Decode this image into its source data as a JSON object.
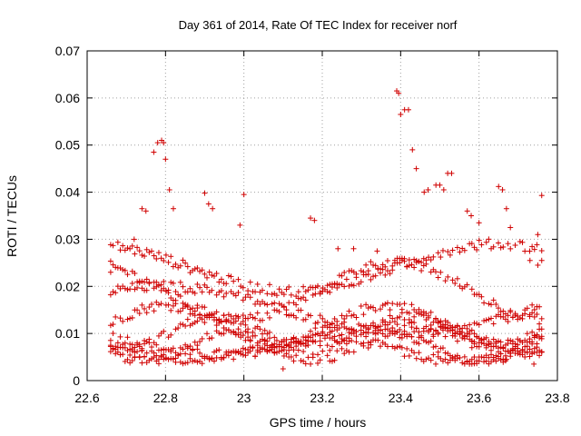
{
  "chart_data": {
    "type": "scatter",
    "title": "Day 361 of 2014, Rate Of TEC Index for receiver norf",
    "xlabel": "GPS time / hours",
    "ylabel": "ROTI / TECUs",
    "xlim": [
      22.6,
      23.8
    ],
    "ylim": [
      0,
      0.07
    ],
    "xticks": [
      22.6,
      22.8,
      23.0,
      23.2,
      23.4,
      23.6,
      23.8
    ],
    "xtick_labels": [
      "22.6",
      "22.8",
      "23",
      "23.2",
      "23.4",
      "23.6",
      "23.8"
    ],
    "yticks": [
      0,
      0.01,
      0.02,
      0.03,
      0.04,
      0.05,
      0.06,
      0.07
    ],
    "ytick_labels": [
      "0",
      "0.01",
      "0.02",
      "0.03",
      "0.04",
      "0.05",
      "0.06",
      "0.07"
    ],
    "grid": true,
    "marker": "+",
    "color": "#d00000",
    "series": [
      {
        "name": "ROTI",
        "x_range": [
          22.66,
          23.76
        ],
        "points": [
          [
            22.66,
            0.023
          ],
          [
            22.72,
            0.03
          ],
          [
            22.74,
            0.0365
          ],
          [
            22.75,
            0.036
          ],
          [
            22.77,
            0.0485
          ],
          [
            22.78,
            0.0505
          ],
          [
            22.79,
            0.051
          ],
          [
            22.795,
            0.0505
          ],
          [
            22.8,
            0.047
          ],
          [
            22.81,
            0.0405
          ],
          [
            22.82,
            0.0365
          ],
          [
            22.9,
            0.0398
          ],
          [
            22.91,
            0.0375
          ],
          [
            22.92,
            0.0365
          ],
          [
            22.99,
            0.033
          ],
          [
            23.0,
            0.0395
          ],
          [
            23.1,
            0.0025
          ],
          [
            23.17,
            0.0345
          ],
          [
            23.18,
            0.034
          ],
          [
            23.24,
            0.028
          ],
          [
            23.28,
            0.028
          ],
          [
            23.34,
            0.0275
          ],
          [
            23.39,
            0.0615
          ],
          [
            23.395,
            0.061
          ],
          [
            23.4,
            0.0565
          ],
          [
            23.41,
            0.0575
          ],
          [
            23.42,
            0.0575
          ],
          [
            23.43,
            0.049
          ],
          [
            23.44,
            0.045
          ],
          [
            23.46,
            0.04
          ],
          [
            23.47,
            0.0405
          ],
          [
            23.49,
            0.0415
          ],
          [
            23.5,
            0.0415
          ],
          [
            23.51,
            0.0405
          ],
          [
            23.52,
            0.044
          ],
          [
            23.53,
            0.044
          ],
          [
            23.57,
            0.036
          ],
          [
            23.58,
            0.035
          ],
          [
            23.6,
            0.0335
          ],
          [
            23.65,
            0.0412
          ],
          [
            23.66,
            0.0405
          ],
          [
            23.67,
            0.0365
          ],
          [
            23.68,
            0.0325
          ],
          [
            23.75,
            0.031
          ],
          [
            23.76,
            0.0393
          ],
          [
            23.76,
            0.0255
          ],
          [
            23.75,
            0.0245
          ],
          [
            23.73,
            0.0255
          ],
          [
            23.67,
            0.0045
          ],
          [
            23.74,
            0.0035
          ]
        ]
      }
    ]
  }
}
